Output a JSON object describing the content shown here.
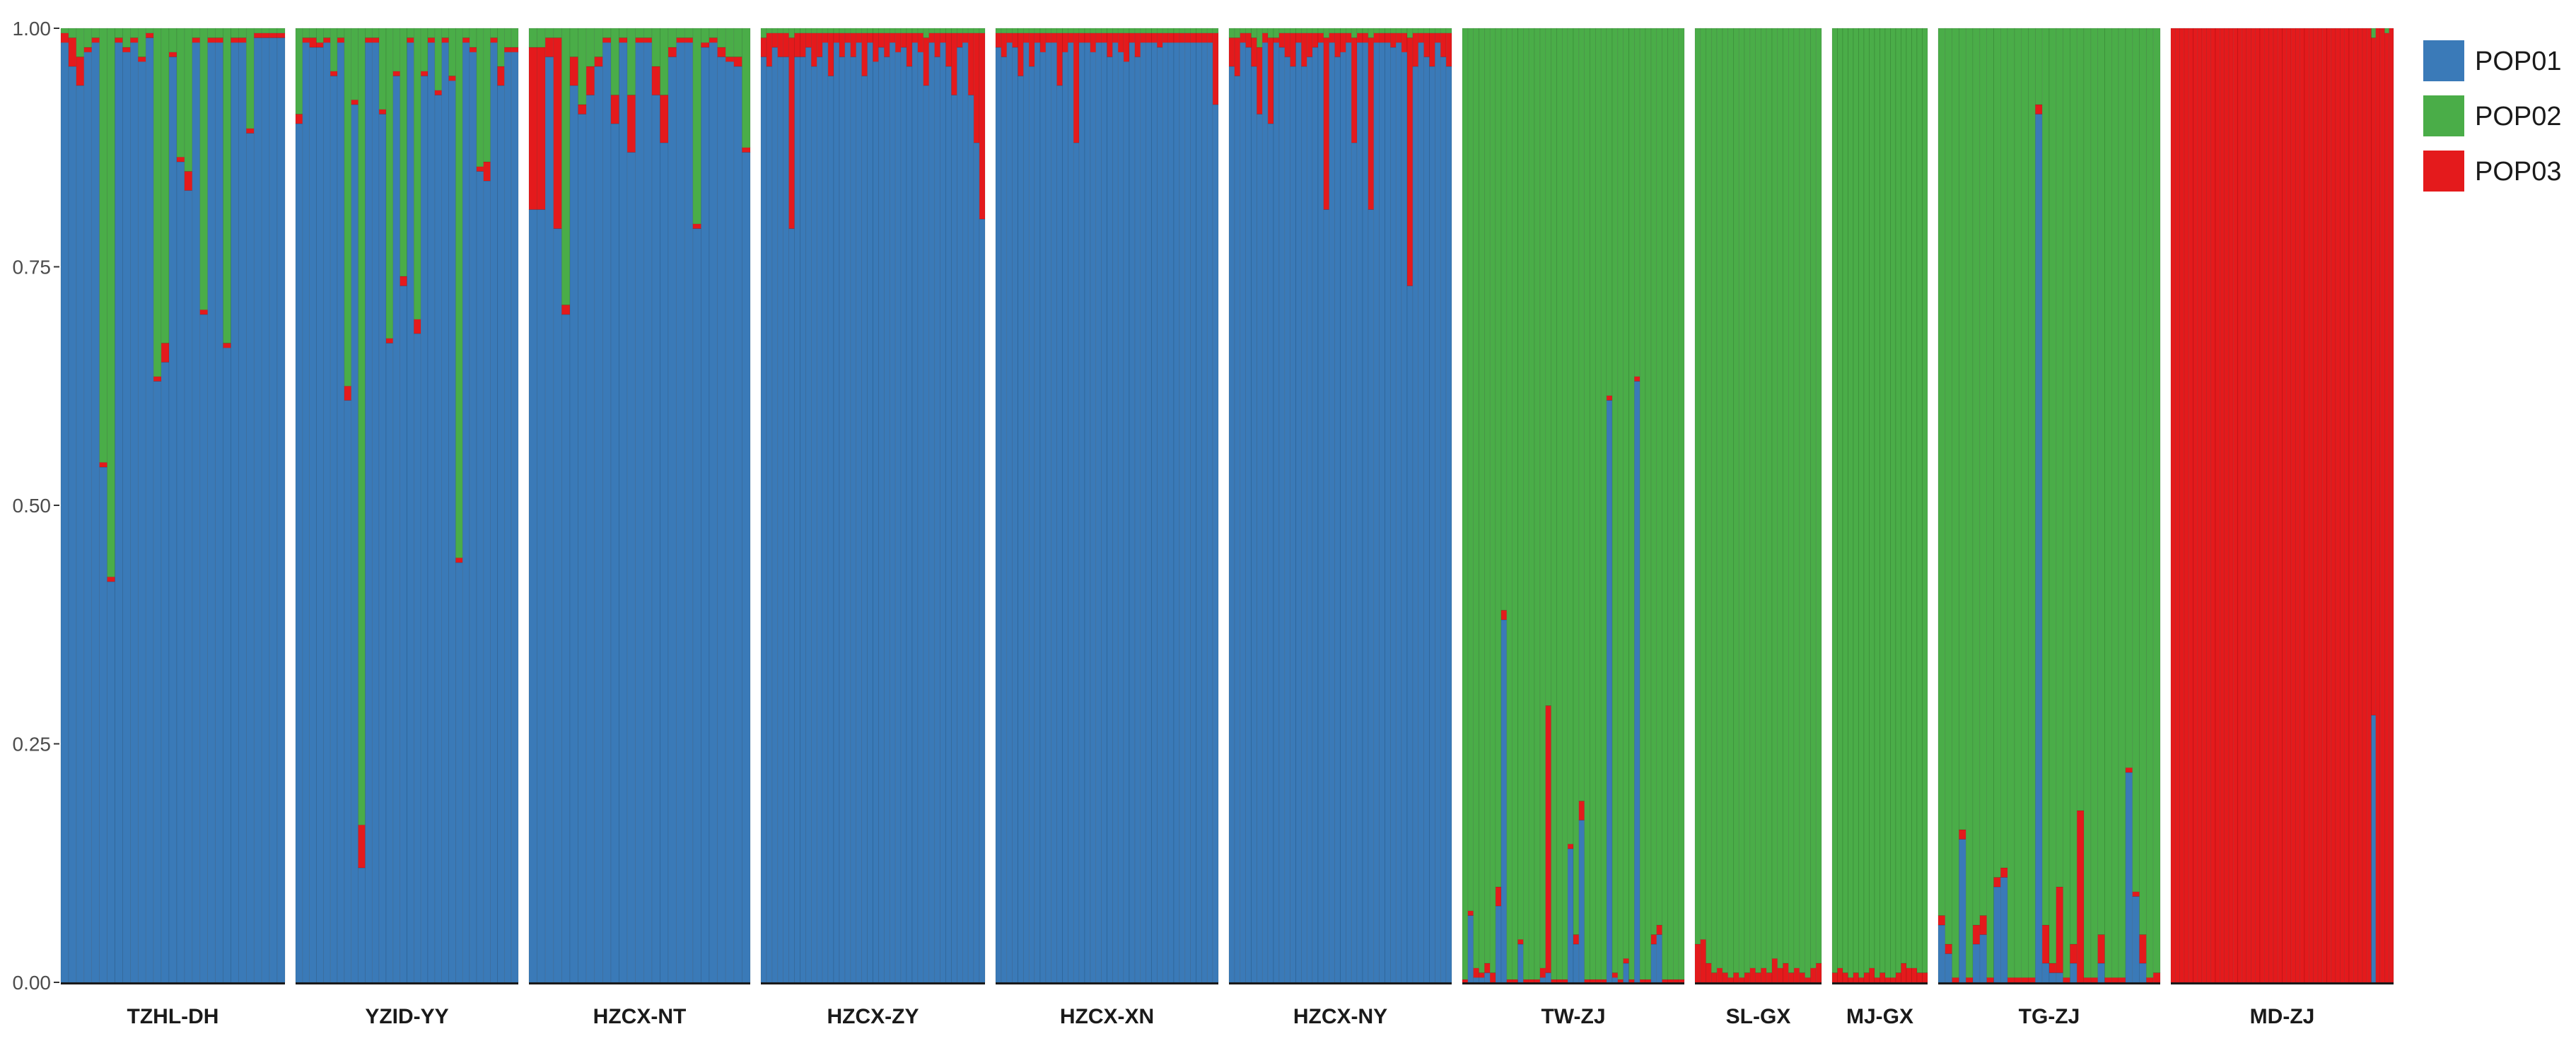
{
  "chart_data": {
    "type": "bar",
    "stacked": true,
    "title": "",
    "xlabel": "",
    "ylabel": "",
    "ylim": [
      0,
      1
    ],
    "yticks": [
      "0.00",
      "0.25",
      "0.50",
      "0.75",
      "1.00"
    ],
    "legend": {
      "position": "right-top",
      "entries": [
        {
          "name": "POP01",
          "color": "#3a7ab8"
        },
        {
          "name": "POP02",
          "color": "#4aad48"
        },
        {
          "name": "POP03",
          "color": "#e41a1c"
        }
      ]
    },
    "groups": [
      {
        "label": "TZHL-DH",
        "pop01": [
          0.985,
          0.96,
          0.94,
          0.975,
          0.985,
          0.54,
          0.42,
          0.985,
          0.975,
          0.985,
          0.965,
          0.99,
          0.63,
          0.65,
          0.97,
          0.86,
          0.83,
          0.985,
          0.7,
          0.985,
          0.985,
          0.665,
          0.985,
          0.985,
          0.89,
          0.99,
          0.99,
          0.99,
          0.99
        ],
        "pop03": [
          0.01,
          0.03,
          0.03,
          0.005,
          0.005,
          0.005,
          0.005,
          0.005,
          0.005,
          0.005,
          0.005,
          0.005,
          0.005,
          0.02,
          0.005,
          0.005,
          0.02,
          0.005,
          0.005,
          0.005,
          0.005,
          0.005,
          0.005,
          0.005,
          0.005,
          0.005,
          0.005,
          0.005,
          0.005
        ]
      },
      {
        "label": "YZID-YY",
        "pop01": [
          0.9,
          0.985,
          0.98,
          0.98,
          0.985,
          0.95,
          0.985,
          0.61,
          0.92,
          0.12,
          0.985,
          0.985,
          0.91,
          0.67,
          0.95,
          0.73,
          0.985,
          0.68,
          0.95,
          0.985,
          0.93,
          0.985,
          0.945,
          0.44,
          0.985,
          0.975,
          0.85,
          0.84,
          0.985,
          0.94,
          0.975,
          0.975
        ],
        "pop03": [
          0.01,
          0.005,
          0.01,
          0.005,
          0.005,
          0.005,
          0.005,
          0.015,
          0.005,
          0.045,
          0.005,
          0.005,
          0.005,
          0.005,
          0.005,
          0.01,
          0.005,
          0.015,
          0.005,
          0.005,
          0.005,
          0.005,
          0.005,
          0.005,
          0.005,
          0.005,
          0.005,
          0.02,
          0.005,
          0.02,
          0.005,
          0.005
        ]
      },
      {
        "label": "HZCX-NT",
        "pop01": [
          0.81,
          0.81,
          0.97,
          0.79,
          0.7,
          0.94,
          0.91,
          0.93,
          0.96,
          0.985,
          0.9,
          0.985,
          0.87,
          0.985,
          0.985,
          0.93,
          0.88,
          0.97,
          0.985,
          0.985,
          0.79,
          0.98,
          0.985,
          0.97,
          0.965,
          0.96,
          0.87
        ],
        "pop03": [
          0.17,
          0.17,
          0.02,
          0.2,
          0.01,
          0.03,
          0.01,
          0.03,
          0.01,
          0.005,
          0.03,
          0.005,
          0.06,
          0.005,
          0.005,
          0.03,
          0.05,
          0.01,
          0.005,
          0.005,
          0.005,
          0.005,
          0.005,
          0.01,
          0.005,
          0.01,
          0.005
        ]
      },
      {
        "label": "HZCX-ZY",
        "pop01": [
          0.97,
          0.96,
          0.98,
          0.97,
          0.97,
          0.79,
          0.97,
          0.97,
          0.98,
          0.96,
          0.97,
          0.985,
          0.95,
          0.985,
          0.97,
          0.985,
          0.97,
          0.985,
          0.95,
          0.985,
          0.965,
          0.98,
          0.97,
          0.985,
          0.975,
          0.98,
          0.96,
          0.985,
          0.975,
          0.94,
          0.985,
          0.97,
          0.985,
          0.96,
          0.93,
          0.98,
          0.985,
          0.93,
          0.88,
          0.8
        ],
        "pop03": [
          0.02,
          0.035,
          0.015,
          0.025,
          0.025,
          0.2,
          0.025,
          0.025,
          0.015,
          0.035,
          0.025,
          0.01,
          0.045,
          0.01,
          0.025,
          0.01,
          0.025,
          0.01,
          0.045,
          0.01,
          0.03,
          0.015,
          0.025,
          0.01,
          0.02,
          0.015,
          0.035,
          0.01,
          0.02,
          0.05,
          0.01,
          0.025,
          0.01,
          0.035,
          0.065,
          0.015,
          0.01,
          0.065,
          0.115,
          0.195
        ]
      },
      {
        "label": "HZCX-XN",
        "pop01": [
          0.98,
          0.97,
          0.985,
          0.98,
          0.95,
          0.985,
          0.96,
          0.985,
          0.975,
          0.985,
          0.985,
          0.94,
          0.975,
          0.985,
          0.88,
          0.985,
          0.985,
          0.975,
          0.985,
          0.985,
          0.97,
          0.985,
          0.975,
          0.965,
          0.985,
          0.97,
          0.985,
          0.985,
          0.985,
          0.98,
          0.985,
          0.985,
          0.985,
          0.985,
          0.985,
          0.985,
          0.985,
          0.985,
          0.985,
          0.92
        ],
        "pop03": [
          0.015,
          0.025,
          0.01,
          0.015,
          0.045,
          0.01,
          0.035,
          0.01,
          0.02,
          0.01,
          0.01,
          0.055,
          0.02,
          0.01,
          0.115,
          0.01,
          0.01,
          0.02,
          0.01,
          0.01,
          0.025,
          0.01,
          0.02,
          0.03,
          0.01,
          0.025,
          0.01,
          0.01,
          0.01,
          0.015,
          0.01,
          0.01,
          0.01,
          0.01,
          0.01,
          0.01,
          0.01,
          0.01,
          0.01,
          0.075
        ]
      },
      {
        "label": "HZCX-NY",
        "pop01": [
          0.96,
          0.95,
          0.985,
          0.98,
          0.96,
          0.91,
          0.985,
          0.9,
          0.985,
          0.98,
          0.97,
          0.96,
          0.985,
          0.96,
          0.97,
          0.98,
          0.985,
          0.81,
          0.985,
          0.97,
          0.975,
          0.985,
          0.88,
          0.985,
          0.985,
          0.81,
          0.985,
          0.985,
          0.985,
          0.98,
          0.985,
          0.975,
          0.73,
          0.96,
          0.985,
          0.97,
          0.96,
          0.985,
          0.97,
          0.96
        ],
        "pop03": [
          0.03,
          0.04,
          0.01,
          0.015,
          0.03,
          0.07,
          0.01,
          0.09,
          0.005,
          0.015,
          0.025,
          0.035,
          0.01,
          0.035,
          0.025,
          0.015,
          0.01,
          0.18,
          0.01,
          0.025,
          0.02,
          0.01,
          0.11,
          0.01,
          0.01,
          0.18,
          0.01,
          0.01,
          0.01,
          0.015,
          0.01,
          0.02,
          0.26,
          0.035,
          0.01,
          0.025,
          0.035,
          0.01,
          0.025,
          0.035
        ]
      },
      {
        "label": "TW-ZJ",
        "pop01": [
          0.0,
          0.07,
          0.005,
          0.005,
          0.01,
          0.0,
          0.08,
          0.38,
          0.0,
          0.0,
          0.04,
          0.0,
          0.0,
          0.0,
          0.005,
          0.01,
          0.0,
          0.0,
          0.0,
          0.14,
          0.04,
          0.17,
          0.0,
          0.0,
          0.0,
          0.0,
          0.61,
          0.005,
          0.0,
          0.02,
          0.0,
          0.63,
          0.0,
          0.0,
          0.04,
          0.05,
          0.0,
          0.0,
          0.0,
          0.0
        ],
        "pop03": [
          0.003,
          0.005,
          0.01,
          0.005,
          0.01,
          0.01,
          0.02,
          0.01,
          0.003,
          0.003,
          0.005,
          0.003,
          0.003,
          0.003,
          0.01,
          0.28,
          0.003,
          0.003,
          0.003,
          0.005,
          0.01,
          0.02,
          0.003,
          0.003,
          0.003,
          0.003,
          0.005,
          0.005,
          0.003,
          0.005,
          0.003,
          0.005,
          0.003,
          0.003,
          0.01,
          0.01,
          0.003,
          0.003,
          0.003,
          0.003
        ]
      },
      {
        "label": "SL-GX",
        "pop01": [
          0,
          0,
          0,
          0,
          0,
          0,
          0,
          0,
          0,
          0,
          0,
          0,
          0,
          0,
          0,
          0,
          0,
          0,
          0,
          0,
          0,
          0,
          0
        ],
        "pop03": [
          0.04,
          0.045,
          0.02,
          0.01,
          0.015,
          0.01,
          0.005,
          0.01,
          0.005,
          0.01,
          0.015,
          0.01,
          0.015,
          0.01,
          0.025,
          0.015,
          0.02,
          0.01,
          0.015,
          0.01,
          0.005,
          0.015,
          0.02
        ]
      },
      {
        "label": "MJ-GX",
        "pop01": [
          0,
          0,
          0,
          0,
          0,
          0,
          0,
          0,
          0,
          0,
          0,
          0,
          0,
          0,
          0,
          0,
          0,
          0
        ],
        "pop03": [
          0.01,
          0.015,
          0.01,
          0.005,
          0.01,
          0.005,
          0.01,
          0.015,
          0.005,
          0.01,
          0.005,
          0.005,
          0.01,
          0.02,
          0.015,
          0.015,
          0.01,
          0.01
        ]
      },
      {
        "label": "TG-ZJ",
        "pop01": [
          0.06,
          0.03,
          0.0,
          0.15,
          0.0,
          0.04,
          0.05,
          0.0,
          0.1,
          0.11,
          0.0,
          0.0,
          0.0,
          0.0,
          0.91,
          0.02,
          0.01,
          0.01,
          0.0,
          0.02,
          0.0,
          0.0,
          0.0,
          0.02,
          0.0,
          0.0,
          0.0,
          0.22,
          0.09,
          0.02,
          0.0,
          0.0
        ],
        "pop03": [
          0.01,
          0.01,
          0.005,
          0.01,
          0.005,
          0.02,
          0.02,
          0.005,
          0.01,
          0.01,
          0.005,
          0.005,
          0.005,
          0.005,
          0.01,
          0.04,
          0.01,
          0.09,
          0.005,
          0.02,
          0.18,
          0.005,
          0.005,
          0.03,
          0.005,
          0.005,
          0.005,
          0.005,
          0.005,
          0.03,
          0.005,
          0.01
        ]
      },
      {
        "label": "MD-ZJ",
        "pop01": [
          0,
          0,
          0,
          0,
          0,
          0,
          0,
          0,
          0,
          0,
          0,
          0,
          0,
          0,
          0,
          0,
          0,
          0,
          0,
          0,
          0,
          0,
          0,
          0,
          0,
          0,
          0,
          0,
          0,
          0,
          0,
          0,
          0,
          0,
          0,
          0,
          0,
          0,
          0,
          0,
          0,
          0,
          0,
          0,
          0,
          0.28,
          0,
          0,
          0,
          0
        ],
        "pop03": [
          1,
          1,
          1,
          1,
          1,
          1,
          1,
          1,
          1,
          1,
          1,
          1,
          1,
          1,
          1,
          1,
          1,
          1,
          1,
          1,
          1,
          1,
          1,
          1,
          1,
          1,
          1,
          1,
          1,
          1,
          1,
          1,
          1,
          1,
          1,
          1,
          1,
          1,
          1,
          1,
          1,
          1,
          1,
          1,
          1,
          0.71,
          1,
          1,
          0.995,
          1
        ]
      }
    ]
  }
}
